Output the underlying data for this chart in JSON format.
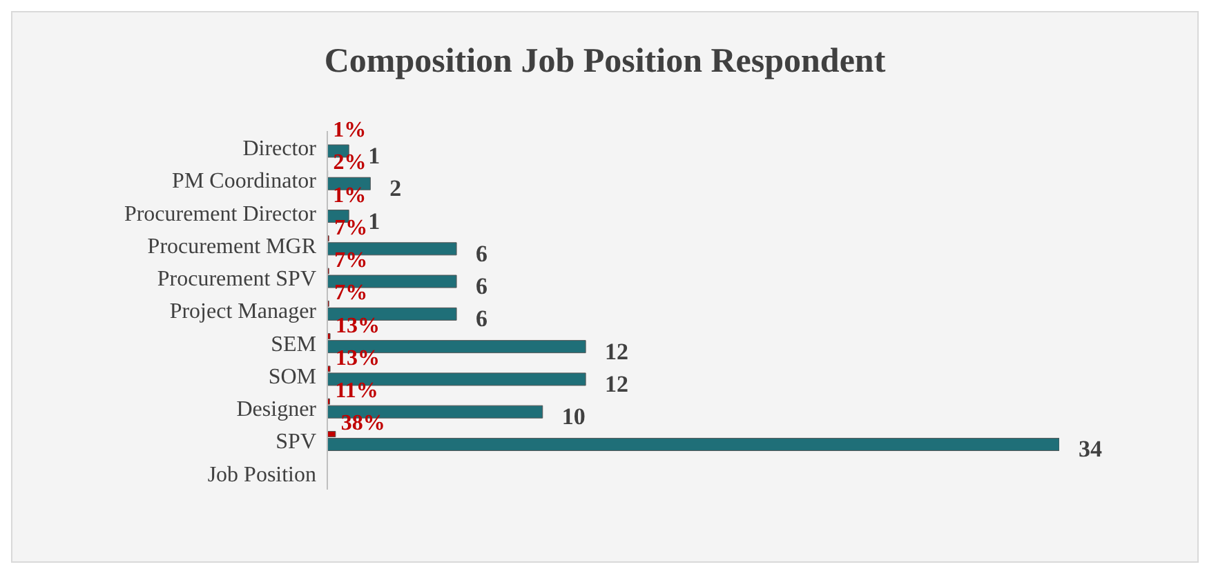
{
  "chart_data": {
    "type": "bar",
    "orientation": "horizontal",
    "title": "Composition Job Position Respondent",
    "categories": [
      "Director",
      "PM Coordinator",
      "Procurement Director",
      "Procurement MGR",
      "Procurement SPV",
      "Project Manager",
      "SEM",
      "SOM",
      "Designer",
      "SPV",
      "Job Position"
    ],
    "series": [
      {
        "color": "#c00000",
        "values": [
          0.01,
          0.02,
          0.01,
          0.07,
          0.07,
          0.07,
          0.13,
          0.13,
          0.11,
          0.38,
          null
        ],
        "value_labels": [
          "1%",
          "2%",
          "1%",
          "7%",
          "7%",
          "7%",
          "13%",
          "13%",
          "11%",
          "38%",
          null
        ]
      },
      {
        "color": "#1f6f78",
        "values": [
          1,
          2,
          1,
          6,
          6,
          6,
          12,
          12,
          10,
          34,
          null
        ],
        "data_labels": true
      }
    ],
    "data_labels": false
  }
}
